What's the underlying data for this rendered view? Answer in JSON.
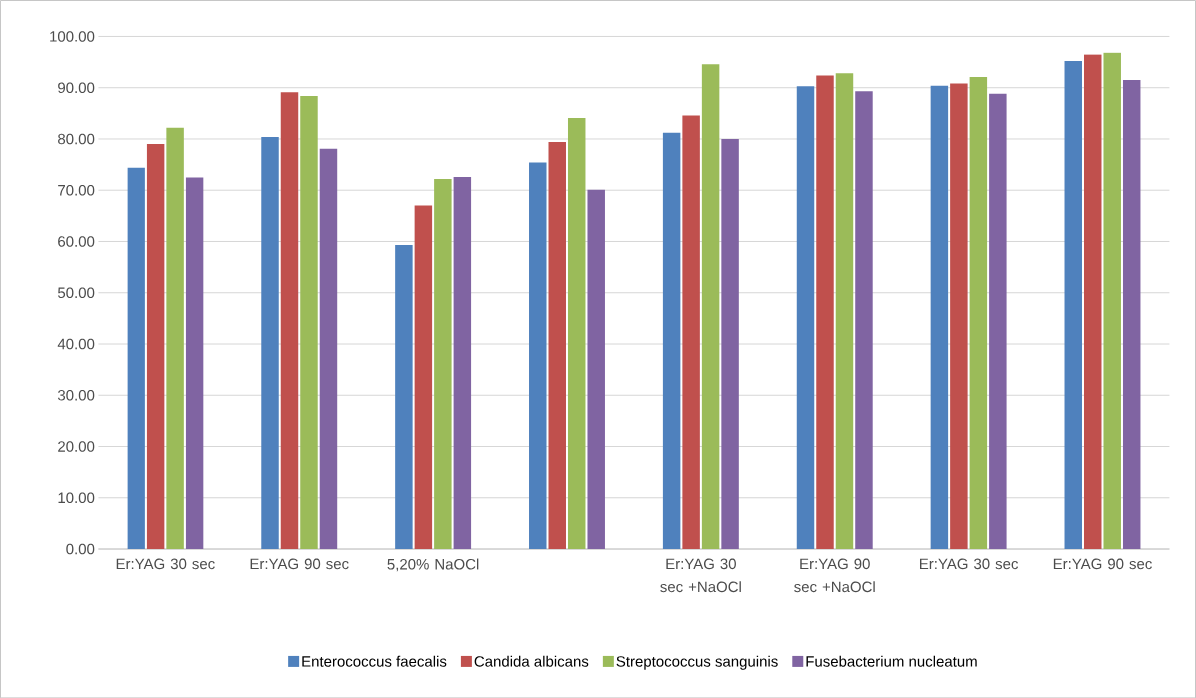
{
  "chart_data": {
    "type": "bar",
    "categories": [
      "Er:YAG 30 sec",
      "Er:YAG 90 sec",
      "5,20% NaOCl",
      null,
      "Er:YAG 30 sec +NaOCl",
      "Er:YAG 90 sec +NaOCl",
      "Er:YAG 30 sec",
      "Er:YAG 90 sec"
    ],
    "series": [
      {
        "name": "Enterococcus faecalis",
        "color": "#4f81bd",
        "values": [
          74.4,
          80.4,
          59.3,
          75.4,
          81.2,
          90.3,
          90.4,
          95.2
        ]
      },
      {
        "name": "Candida albicans",
        "color": "#c0504d",
        "values": [
          79.0,
          89.1,
          67.0,
          79.4,
          84.6,
          92.4,
          90.8,
          96.5
        ]
      },
      {
        "name": "Streptococcus sanguinis",
        "color": "#9bbb59",
        "values": [
          82.2,
          88.4,
          72.2,
          84.1,
          94.6,
          92.8,
          92.1,
          96.8
        ]
      },
      {
        "name": "Fusebacterium nucleatum",
        "color": "#8064a2",
        "values": [
          72.5,
          78.1,
          72.6,
          70.1,
          80.0,
          89.3,
          88.8,
          91.5
        ]
      }
    ],
    "ylim": [
      0,
      100
    ],
    "yticks": [
      {
        "value": 0,
        "label": "0.00"
      },
      {
        "value": 10,
        "label": "10.00"
      },
      {
        "value": 20,
        "label": "20.00"
      },
      {
        "value": 30,
        "label": "30.00"
      },
      {
        "value": 40,
        "label": "40.00"
      },
      {
        "value": 50,
        "label": "50.00"
      },
      {
        "value": 60,
        "label": "60.00"
      },
      {
        "value": 70,
        "label": "70.00"
      },
      {
        "value": 80,
        "label": "80.00"
      },
      {
        "value": 90,
        "label": "90.00"
      },
      {
        "value": 100,
        "label": "100.00"
      }
    ],
    "grid": "y",
    "legend": "bottom"
  }
}
